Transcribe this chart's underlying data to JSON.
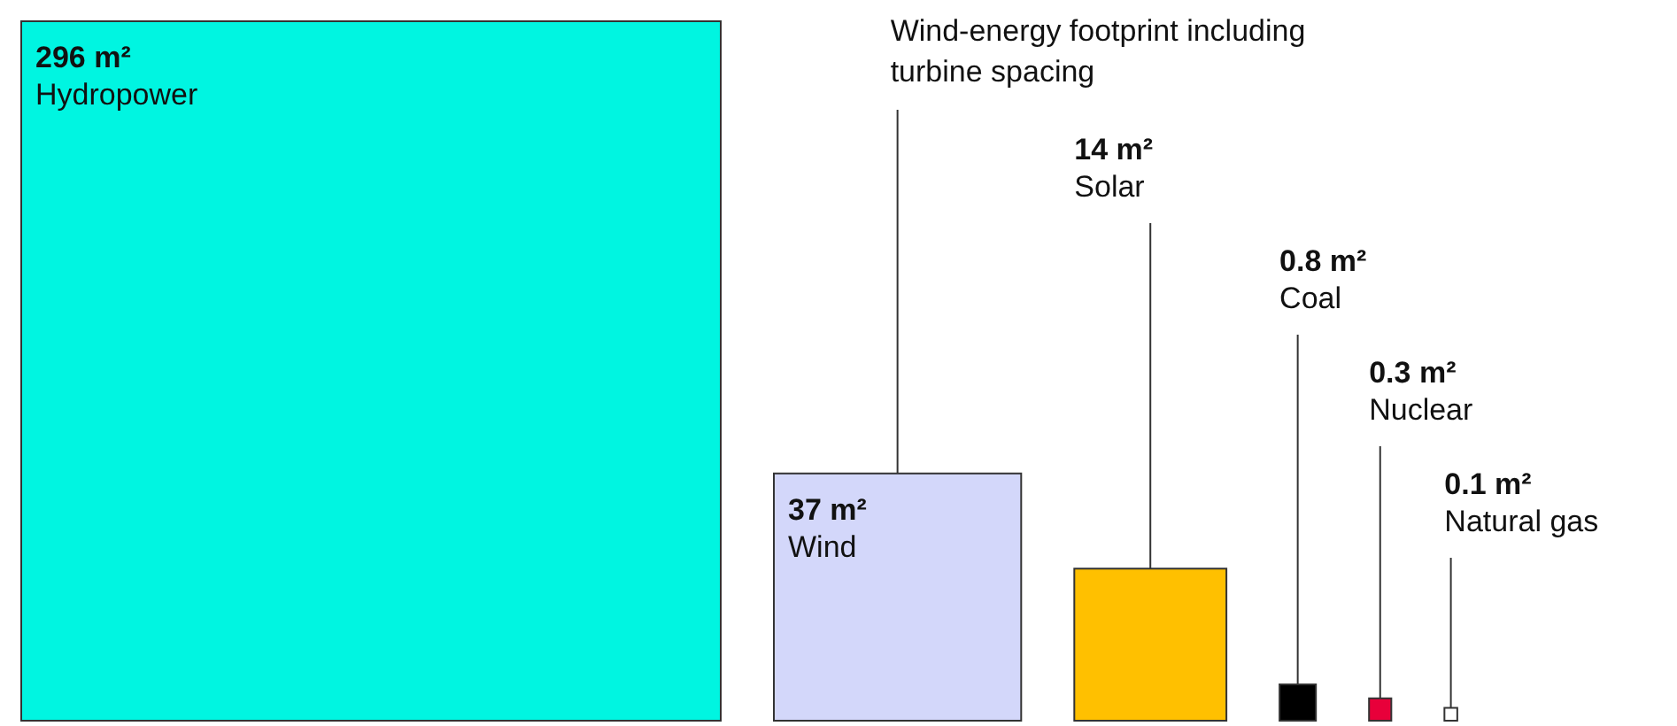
{
  "chart_data": {
    "type": "other",
    "categories": [
      "Hydropower",
      "Wind",
      "Solar",
      "Coal",
      "Nuclear",
      "Natural gas"
    ],
    "values": [
      296,
      37,
      14,
      0.8,
      0.3,
      0.1
    ],
    "value_labels": [
      "296 m²",
      "37 m²",
      "14 m²",
      "0.8 m²",
      "0.3 m²",
      "0.1 m²"
    ],
    "colors": [
      "#00f5e1",
      "#d3d7fa",
      "#ffc000",
      "#000000",
      "#e8003a",
      "#ffffff"
    ],
    "annotations": [
      {
        "text": "Wind-energy footprint including turbine spacing",
        "x": "Wind"
      }
    ]
  }
}
